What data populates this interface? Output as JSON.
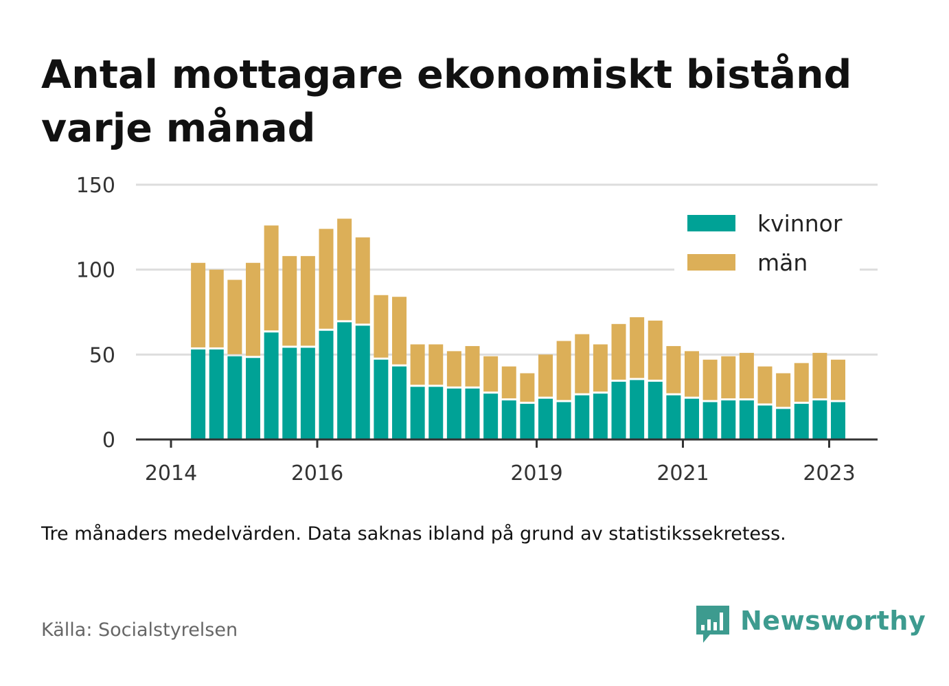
{
  "title": "Antal mottagare ekonomiskt bistånd varje månad",
  "note": "Tre månaders medelvärden. Data saknas ibland på grund av statistikssekretess.",
  "source": "Källa: Socialstyrelsen",
  "brand": {
    "name": "Newsworthy",
    "icon": "bar-chart-speech-bubble-icon",
    "color": "#3d9b8f"
  },
  "colors": {
    "kvinnor": "#00a296",
    "man": "#dcaf58",
    "grid": "#dddddd",
    "axis": "#333333"
  },
  "chart_data": {
    "type": "bar",
    "stacked": true,
    "title": "Antal mottagare ekonomiskt bistånd varje månad",
    "xlabel": "",
    "ylabel": "",
    "ylim": [
      0,
      150
    ],
    "yticks": [
      0,
      50,
      100,
      150
    ],
    "xticks": [
      "2014",
      "2016",
      "2019",
      "2021",
      "2023"
    ],
    "grid": true,
    "legend_position": "top-right",
    "categories": [
      "2014-Q2",
      "2014-Q3",
      "2014-Q4",
      "2015-Q1",
      "2015-Q2",
      "2015-Q3",
      "2015-Q4",
      "2016-Q1",
      "2016-Q2",
      "2016-Q3",
      "2016-Q4",
      "2017-Q1",
      "2017-Q2",
      "2017-Q3",
      "2017-Q4",
      "2018-Q1",
      "2018-Q2",
      "2018-Q3",
      "2018-Q4",
      "2019-Q1",
      "2019-Q2",
      "2019-Q3",
      "2019-Q4",
      "2020-Q1",
      "2020-Q2",
      "2020-Q3",
      "2020-Q4",
      "2021-Q1",
      "2021-Q2",
      "2021-Q3",
      "2021-Q4",
      "2022-Q1",
      "2022-Q2",
      "2022-Q3",
      "2022-Q4",
      "2023-Q1"
    ],
    "series": [
      {
        "name": "kvinnor",
        "values": [
          53,
          53,
          49,
          48,
          63,
          54,
          54,
          64,
          69,
          67,
          47,
          43,
          31,
          31,
          30,
          30,
          27,
          23,
          21,
          24,
          22,
          26,
          27,
          34,
          35,
          34,
          26,
          24,
          22,
          23,
          23,
          20,
          18,
          21,
          23,
          22
        ]
      },
      {
        "name": "män",
        "values": [
          51,
          47,
          45,
          56,
          63,
          54,
          54,
          60,
          61,
          52,
          38,
          41,
          25,
          25,
          22,
          25,
          22,
          20,
          18,
          26,
          36,
          36,
          29,
          34,
          37,
          36,
          29,
          28,
          25,
          26,
          28,
          23,
          21,
          24,
          28,
          25
        ]
      }
    ]
  }
}
